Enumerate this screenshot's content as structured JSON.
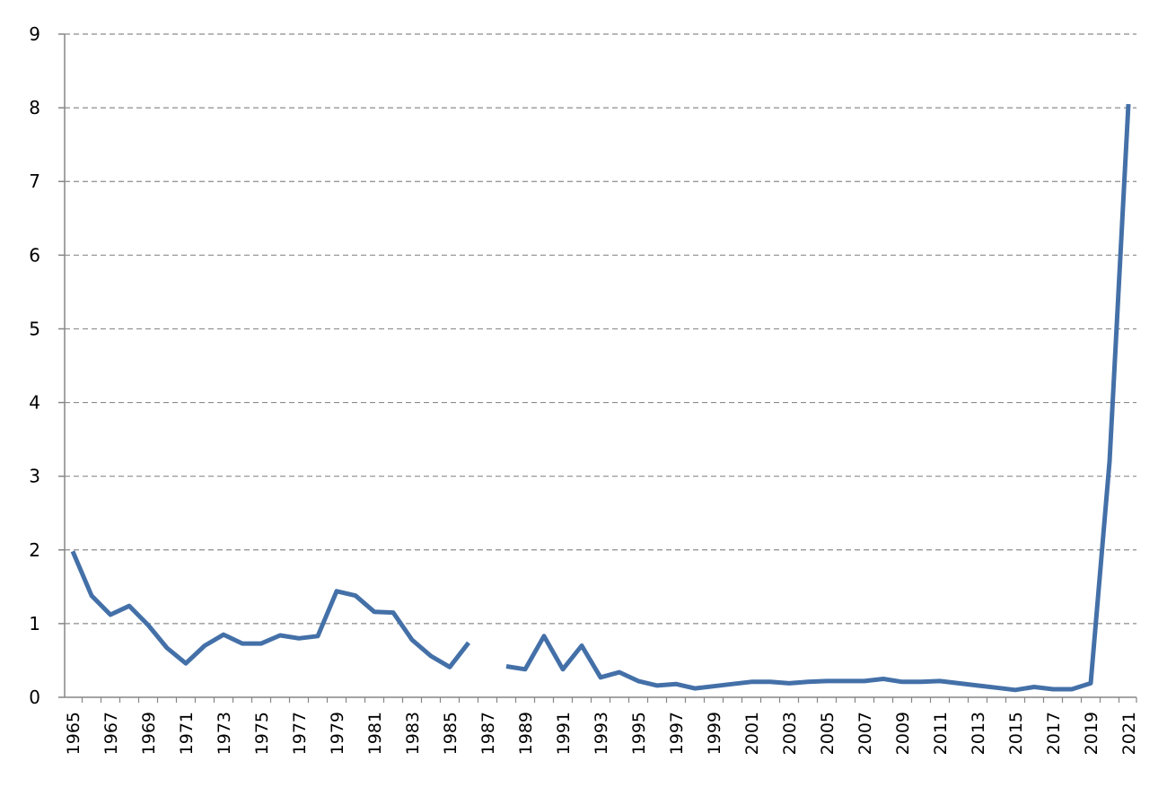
{
  "chart_data": {
    "type": "line",
    "title": "",
    "xlabel": "",
    "ylabel": "",
    "ylim": [
      0,
      9
    ],
    "xlim": [
      1965,
      2021
    ],
    "grid": "horizontal-dashed",
    "legend": "none",
    "y_ticks": [
      "0",
      "1",
      "2",
      "3",
      "4",
      "5",
      "6",
      "7",
      "8",
      "9"
    ],
    "x_ticks": [
      "1965",
      "1967",
      "1969",
      "1971",
      "1973",
      "1975",
      "1977",
      "1979",
      "1981",
      "1983",
      "1985",
      "1987",
      "1989",
      "1991",
      "1993",
      "1995",
      "1997",
      "1999",
      "2001",
      "2003",
      "2005",
      "2007",
      "2009",
      "2011",
      "2013",
      "2015",
      "2017",
      "2019",
      "2021"
    ],
    "series": [
      {
        "color": "#4470a8",
        "x": [
          1965,
          1966,
          1967,
          1968,
          1969,
          1970,
          1971,
          1972,
          1973,
          1974,
          1975,
          1976,
          1977,
          1978,
          1979,
          1980,
          1981,
          1982,
          1983,
          1984,
          1985,
          1986,
          1987,
          1988,
          1989,
          1990,
          1991,
          1992,
          1993,
          1994,
          1995,
          1996,
          1997,
          1998,
          1999,
          2000,
          2001,
          2002,
          2003,
          2004,
          2005,
          2006,
          2007,
          2008,
          2009,
          2010,
          2011,
          2012,
          2013,
          2014,
          2015,
          2016,
          2017,
          2018,
          2019,
          2020,
          2021
        ],
        "values": [
          1.98,
          1.38,
          1.12,
          1.24,
          0.98,
          0.67,
          0.46,
          0.7,
          0.85,
          0.73,
          0.73,
          0.84,
          0.8,
          0.83,
          1.44,
          1.38,
          1.16,
          1.15,
          0.78,
          0.56,
          0.41,
          0.74,
          null,
          0.42,
          0.38,
          0.83,
          0.38,
          0.7,
          0.27,
          0.34,
          0.22,
          0.16,
          0.18,
          0.12,
          0.15,
          0.18,
          0.21,
          0.21,
          0.19,
          0.21,
          0.22,
          0.22,
          0.22,
          0.25,
          0.21,
          0.21,
          0.22,
          0.19,
          0.16,
          0.13,
          0.1,
          0.14,
          0.11,
          0.11,
          0.19,
          3.2,
          8.05
        ]
      }
    ]
  }
}
